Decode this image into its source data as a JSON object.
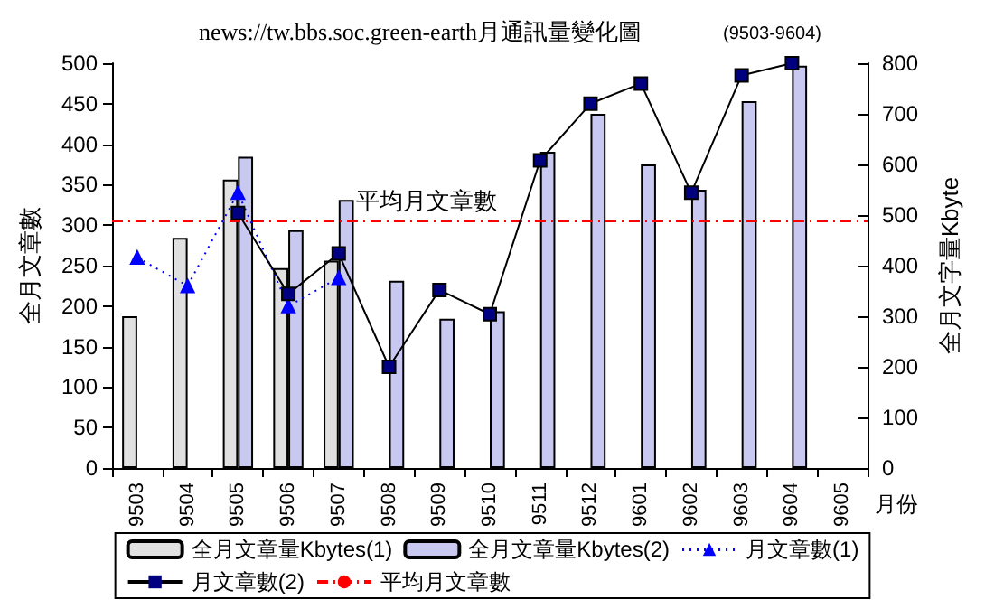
{
  "chart_data": {
    "type": "bar",
    "title": "news://tw.bbs.soc.green-earth月通訊量變化圖",
    "subtitle": "(9503-9604)",
    "xlabel": "月份",
    "ylabel": "全月文章數",
    "y2label": "全月文字量Kbyte",
    "categories": [
      "9503",
      "9504",
      "9505",
      "9506",
      "9507",
      "9508",
      "9509",
      "9510",
      "9511",
      "9512",
      "9601",
      "9602",
      "9603",
      "9604",
      "9605"
    ],
    "series": [
      {
        "name": "全月文章量Kbytes(1)",
        "axis": "y2",
        "color": "#e0e0e0",
        "values": [
          300,
          455,
          570,
          395,
          410,
          null,
          null,
          null,
          null,
          null,
          null,
          null,
          null,
          null,
          null
        ]
      },
      {
        "name": "全月文章量Kbytes(2)",
        "axis": "y2",
        "color": "#c8c8f0",
        "values": [
          null,
          null,
          615,
          470,
          530,
          370,
          295,
          310,
          625,
          700,
          600,
          550,
          725,
          795,
          null
        ]
      },
      {
        "name": "月文章數(1)",
        "type": "line",
        "axis": "y",
        "color": "#0000ff",
        "marker": "triangle",
        "line_style": "dotted",
        "values": [
          260,
          225,
          340,
          200,
          235,
          null,
          null,
          null,
          null,
          null,
          null,
          null,
          null,
          null,
          null
        ]
      },
      {
        "name": "月文章數(2)",
        "type": "line",
        "axis": "y",
        "color": "#000080",
        "marker": "square",
        "line_style": "solid",
        "values": [
          null,
          null,
          315,
          215,
          265,
          125,
          220,
          190,
          380,
          450,
          475,
          340,
          485,
          500,
          null
        ]
      }
    ],
    "ref_lines": [
      {
        "axis": "y",
        "value": 305,
        "label": "平均月文章數",
        "color": "#ff0000",
        "line_style": "dashed"
      }
    ],
    "ylim": [
      0,
      500
    ],
    "yticks": [
      0,
      50,
      100,
      150,
      200,
      250,
      300,
      350,
      400,
      450,
      500
    ],
    "y2lim": [
      0,
      800
    ],
    "y2ticks": [
      0,
      100,
      200,
      300,
      400,
      500,
      600,
      700,
      800
    ],
    "grid": false,
    "legend": "bottom"
  }
}
